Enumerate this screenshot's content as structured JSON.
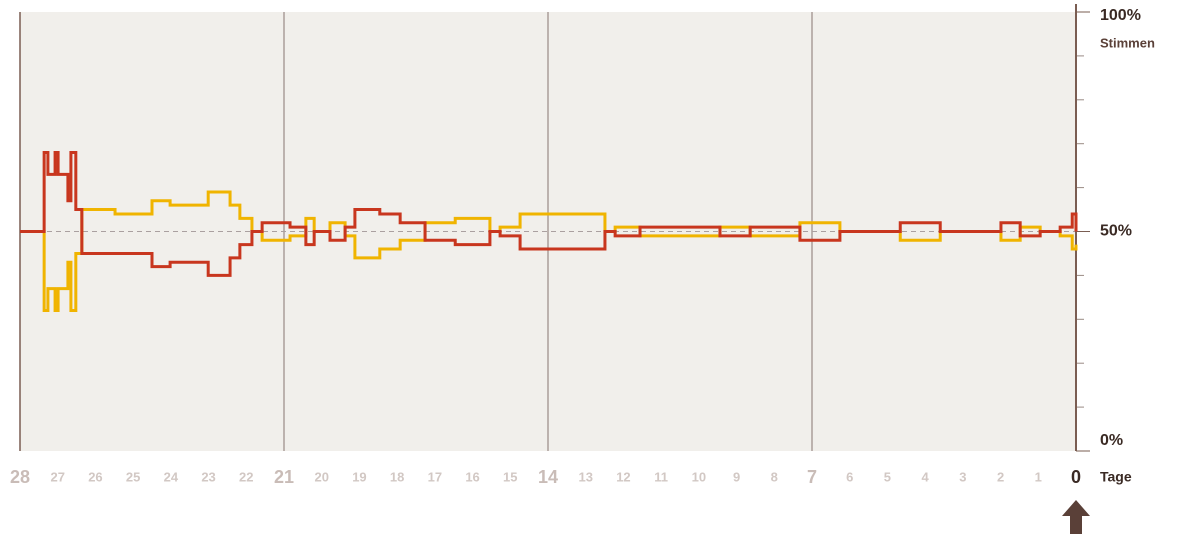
{
  "chart_data": {
    "type": "line",
    "step": true,
    "x_label": "Tage",
    "y_label": "Stimmen",
    "xlim": [
      28,
      0
    ],
    "xticks": [
      28,
      27,
      26,
      25,
      24,
      23,
      22,
      21,
      20,
      19,
      18,
      17,
      16,
      15,
      14,
      13,
      12,
      11,
      10,
      9,
      8,
      7,
      6,
      5,
      4,
      3,
      2,
      1,
      0
    ],
    "x_major_ticks": [
      28,
      21,
      14,
      7,
      0
    ],
    "x_highlight": 0,
    "ylim": [
      0,
      100
    ],
    "yticks": [
      {
        "value": 0,
        "label": "0%"
      },
      {
        "value": 50,
        "label": "50%"
      },
      {
        "value": 100,
        "label": "100%"
      }
    ],
    "y_minor_ticks": [
      10,
      20,
      30,
      40,
      60,
      70,
      80,
      90
    ],
    "reference_line": 50,
    "x": [
      28.0,
      27.36,
      27.26,
      27.07,
      26.99,
      26.73,
      26.65,
      26.52,
      26.36,
      25.48,
      24.5,
      24.02,
      23.01,
      22.43,
      22.17,
      21.85,
      21.58,
      20.84,
      20.42,
      20.2,
      19.78,
      19.38,
      19.12,
      18.46,
      17.92,
      17.26,
      16.46,
      15.54,
      15.27,
      14.74,
      12.49,
      12.22,
      11.56,
      9.44,
      8.64,
      7.32,
      6.26,
      4.66,
      3.6,
      1.99,
      1.48,
      0.95,
      0.42,
      0.1,
      0
    ],
    "series": [
      {
        "color": "#f0b400",
        "values": [
          50,
          32,
          37,
          32,
          37,
          43,
          32,
          45,
          55,
          54,
          57,
          56,
          59,
          56,
          53,
          50,
          48,
          49,
          53,
          50,
          52,
          49,
          44,
          46,
          48,
          52,
          53,
          50,
          51,
          54,
          50,
          51,
          49,
          51,
          49,
          52,
          50,
          48,
          50,
          48,
          51,
          50,
          49,
          46,
          47
        ]
      },
      {
        "color": "#c8361e",
        "values": [
          50,
          68,
          63,
          68,
          63,
          57,
          68,
          55,
          45,
          45,
          42,
          43,
          40,
          44,
          47,
          50,
          52,
          51,
          47,
          50,
          48,
          51,
          55,
          54,
          52,
          48,
          47,
          50,
          49,
          46,
          50,
          49,
          51,
          49,
          51,
          48,
          50,
          52,
          50,
          52,
          49,
          50,
          51,
          54,
          50
        ]
      }
    ]
  }
}
